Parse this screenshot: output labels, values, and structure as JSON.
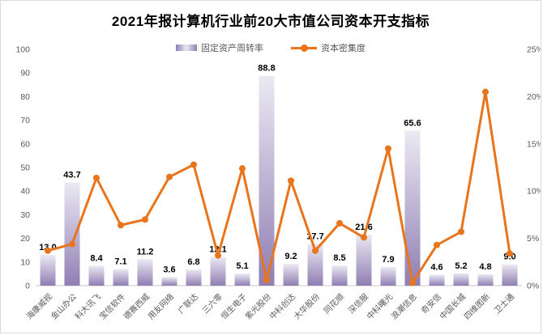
{
  "title": "2021年报计算机行业前20大市值公司资本开支指标",
  "legend": {
    "bar_label": "固定资产周转率",
    "line_label": "资本密集度"
  },
  "colors": {
    "bar_gradient_top": "#ece9f3",
    "bar_gradient_bottom": "#8f7eb3",
    "line": "#e8751c",
    "bar_value_label": "#000000",
    "axis_text": "#595959",
    "axis_line": "#d9d9d9",
    "title_text": "#000000"
  },
  "left_axis": {
    "tick_labels": [
      "0",
      "10",
      "20",
      "30",
      "40",
      "50",
      "60",
      "70",
      "80",
      "90",
      "100"
    ],
    "tick_values": [
      0,
      10,
      20,
      30,
      40,
      50,
      60,
      70,
      80,
      90,
      100
    ]
  },
  "right_axis": {
    "tick_labels": [
      "0%",
      "5%",
      "10%",
      "15%",
      "20%",
      "25%"
    ],
    "tick_values": [
      0,
      5,
      10,
      15,
      20,
      25
    ]
  },
  "chart_data": {
    "type": "bar",
    "subtype": "bar-and-line-combo",
    "title": "2021年报计算机行业前20大市值公司资本开支指标",
    "categories": [
      "海康威视",
      "金山办公",
      "科大讯飞",
      "宝信软件",
      "德赛西威",
      "用友网络",
      "广联达",
      "三六零",
      "恒生电子",
      "紫光股份",
      "中科创达",
      "大华股份",
      "同花顺",
      "深信服",
      "中科曙光",
      "浪潮信息",
      "奇安信",
      "中国长城",
      "四维图新",
      "卫士通"
    ],
    "series": [
      {
        "name": "固定资产周转率",
        "type": "bar",
        "axis": "left",
        "values": [
          13.0,
          43.7,
          8.4,
          7.1,
          11.2,
          3.6,
          6.8,
          12.1,
          5.1,
          88.8,
          9.2,
          17.7,
          8.5,
          21.6,
          7.9,
          65.6,
          4.6,
          5.2,
          4.8,
          9.0
        ],
        "data_labels_visible": true
      },
      {
        "name": "资本密集度",
        "type": "line",
        "axis": "right",
        "unit": "%",
        "values": [
          3.7,
          4.4,
          11.4,
          6.4,
          7.0,
          11.5,
          12.8,
          3.2,
          12.4,
          0.6,
          11.1,
          3.7,
          6.6,
          5.1,
          14.5,
          0.3,
          4.3,
          5.7,
          20.5,
          3.4
        ],
        "data_labels_visible": false
      }
    ],
    "left_ylim": [
      0,
      100
    ],
    "right_ylim": [
      0,
      25
    ],
    "grid": false,
    "legend_position": "top",
    "x_label_rotation": -45
  }
}
